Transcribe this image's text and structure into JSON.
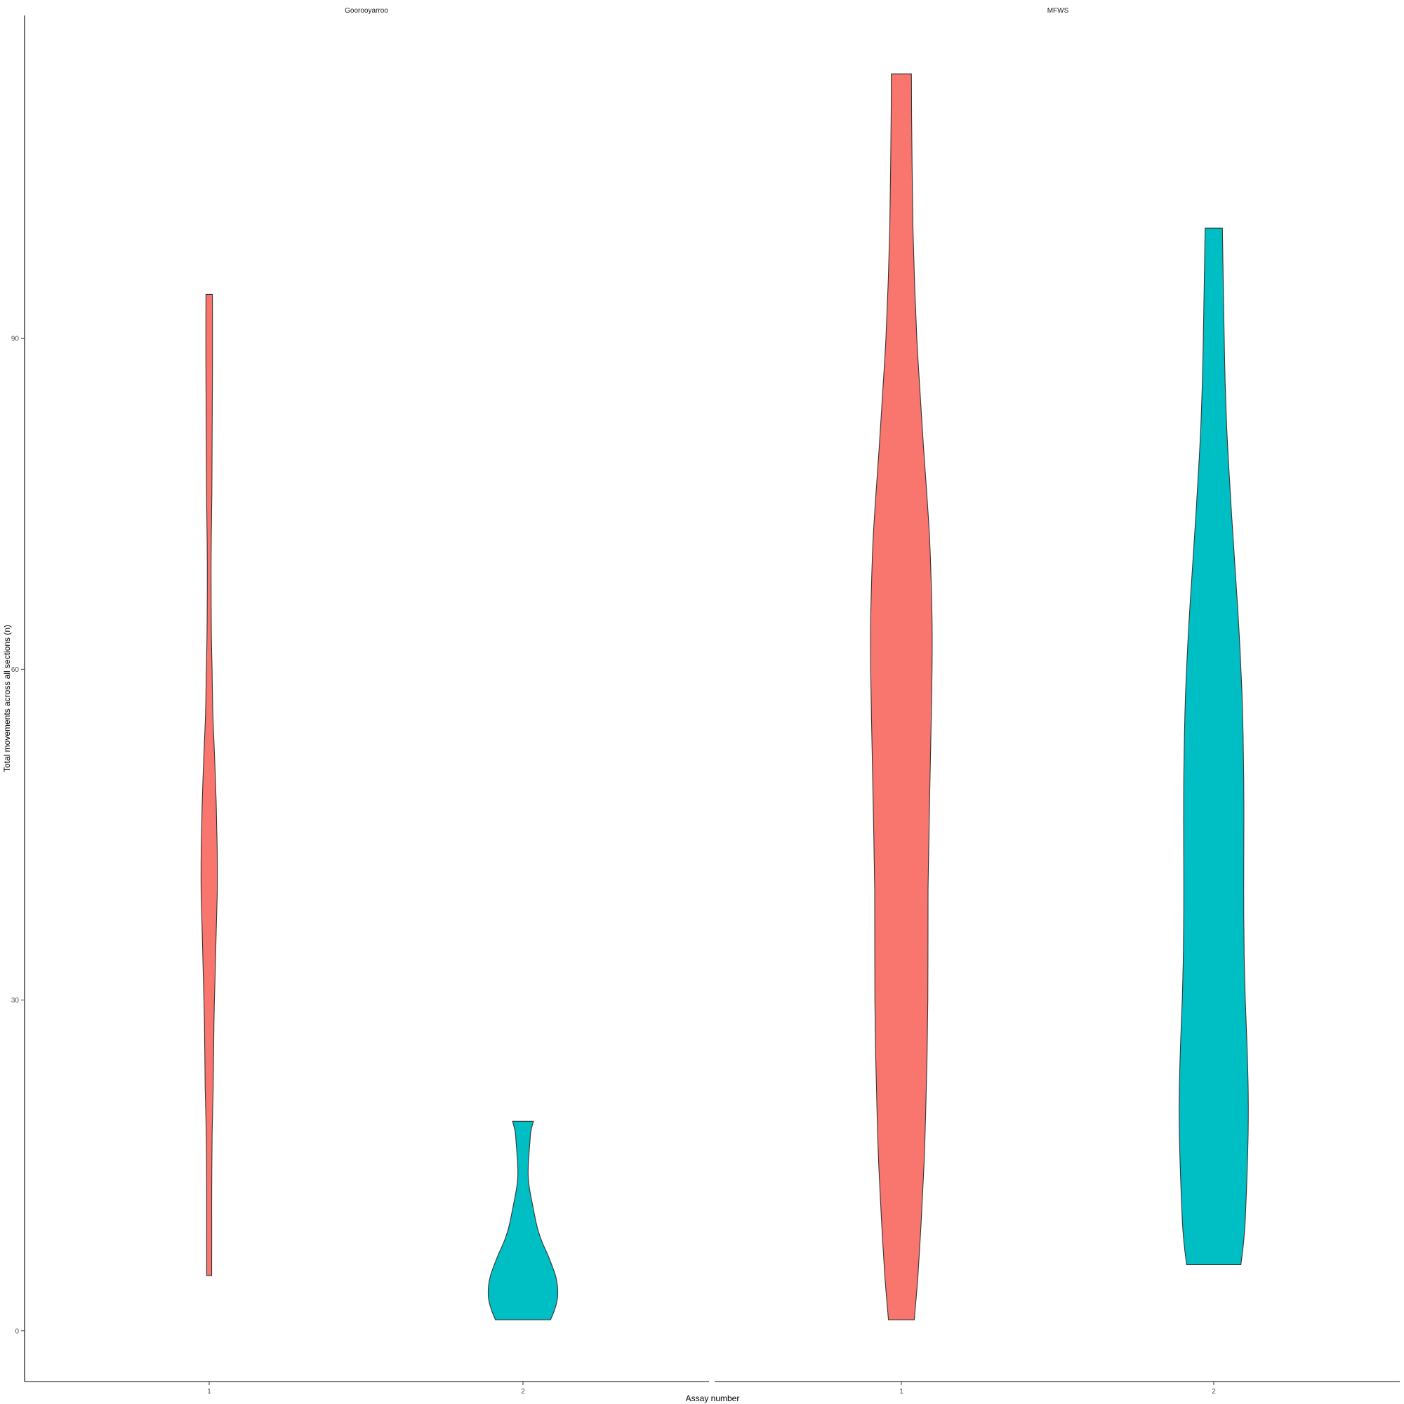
{
  "chart_data": {
    "type": "violin",
    "xlabel": "Assay number",
    "ylabel": "Total movements across all sections (n)",
    "ylim": [
      -4.6,
      119.3
    ],
    "yticks": [
      0,
      30,
      60,
      90
    ],
    "grid": false,
    "legend": "none",
    "colors": {
      "assay_1": "#F8766D",
      "assay_2": "#00BFC4",
      "outline": "#333333"
    },
    "panels": [
      {
        "name": "Goorooyarroo",
        "categories": [
          "1",
          "2"
        ],
        "violins": [
          {
            "category": "1",
            "min": 5,
            "max": 94,
            "profile": [
              [
                5,
                0.22
              ],
              [
                8,
                0.23
              ],
              [
                13,
                0.23
              ],
              [
                18,
                0.27
              ],
              [
                22,
                0.36
              ],
              [
                28,
                0.43
              ],
              [
                32,
                0.53
              ],
              [
                36,
                0.63
              ],
              [
                40,
                0.73
              ],
              [
                44,
                0.72
              ],
              [
                48,
                0.63
              ],
              [
                52,
                0.49
              ],
              [
                56,
                0.33
              ],
              [
                60,
                0.26
              ],
              [
                63,
                0.2
              ],
              [
                68,
                0.17
              ],
              [
                72,
                0.19
              ],
              [
                76,
                0.24
              ],
              [
                80,
                0.26
              ],
              [
                84,
                0.28
              ],
              [
                88,
                0.3
              ],
              [
                91,
                0.3
              ],
              [
                94,
                0.29
              ]
            ]
          },
          {
            "category": "2",
            "min": 1,
            "max": 19,
            "profile": [
              [
                1,
                2.5
              ],
              [
                2,
                2.9
              ],
              [
                3,
                3.13
              ],
              [
                4,
                3.13
              ],
              [
                5,
                2.95
              ],
              [
                6,
                2.6
              ],
              [
                7,
                2.2
              ],
              [
                8,
                1.75
              ],
              [
                9,
                1.4
              ],
              [
                10,
                1.15
              ],
              [
                11,
                0.95
              ],
              [
                12,
                0.75
              ],
              [
                13,
                0.57
              ],
              [
                14,
                0.47
              ],
              [
                15,
                0.48
              ],
              [
                16,
                0.54
              ],
              [
                17,
                0.62
              ],
              [
                18,
                0.7
              ],
              [
                19,
                0.94
              ]
            ]
          }
        ]
      },
      {
        "name": "MFWS",
        "categories": [
          "1",
          "2"
        ],
        "violins": [
          {
            "category": "1",
            "min": 1,
            "max": 114,
            "profile": [
              [
                1,
                1.17
              ],
              [
                5,
                1.5
              ],
              [
                10,
                1.8
              ],
              [
                15,
                2.05
              ],
              [
                20,
                2.21
              ],
              [
                25,
                2.33
              ],
              [
                30,
                2.4
              ],
              [
                35,
                2.41
              ],
              [
                40,
                2.42
              ],
              [
                45,
                2.5
              ],
              [
                50,
                2.6
              ],
              [
                55,
                2.7
              ],
              [
                60,
                2.78
              ],
              [
                64,
                2.79
              ],
              [
                68,
                2.7
              ],
              [
                72,
                2.55
              ],
              [
                76,
                2.3
              ],
              [
                80,
                2.02
              ],
              [
                85,
                1.7
              ],
              [
                90,
                1.4
              ],
              [
                95,
                1.2
              ],
              [
                100,
                1.05
              ],
              [
                105,
                0.98
              ],
              [
                110,
                0.93
              ],
              [
                114,
                0.91
              ]
            ]
          },
          {
            "category": "2",
            "min": 6,
            "max": 100,
            "profile": [
              [
                6,
                2.46
              ],
              [
                8,
                2.7
              ],
              [
                10,
                2.85
              ],
              [
                14,
                3.01
              ],
              [
                18,
                3.12
              ],
              [
                22,
                3.12
              ],
              [
                26,
                3.01
              ],
              [
                30,
                2.86
              ],
              [
                34,
                2.76
              ],
              [
                38,
                2.72
              ],
              [
                42,
                2.72
              ],
              [
                46,
                2.73
              ],
              [
                50,
                2.72
              ],
              [
                54,
                2.66
              ],
              [
                58,
                2.55
              ],
              [
                62,
                2.37
              ],
              [
                66,
                2.14
              ],
              [
                70,
                1.88
              ],
              [
                74,
                1.62
              ],
              [
                78,
                1.38
              ],
              [
                82,
                1.17
              ],
              [
                86,
                1.03
              ],
              [
                90,
                0.95
              ],
              [
                94,
                0.88
              ],
              [
                97,
                0.83
              ],
              [
                100,
                0.78
              ]
            ]
          }
        ]
      }
    ]
  }
}
